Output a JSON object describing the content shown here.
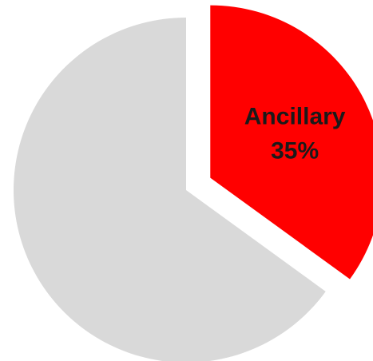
{
  "chart_data": {
    "type": "pie",
    "categories": [
      "Ancillary",
      null
    ],
    "values": [
      35,
      65
    ],
    "value_labels": [
      "35%",
      null
    ],
    "colors": [
      "#ff0000",
      "#d9d9d9"
    ],
    "explode": [
      true,
      false
    ]
  }
}
